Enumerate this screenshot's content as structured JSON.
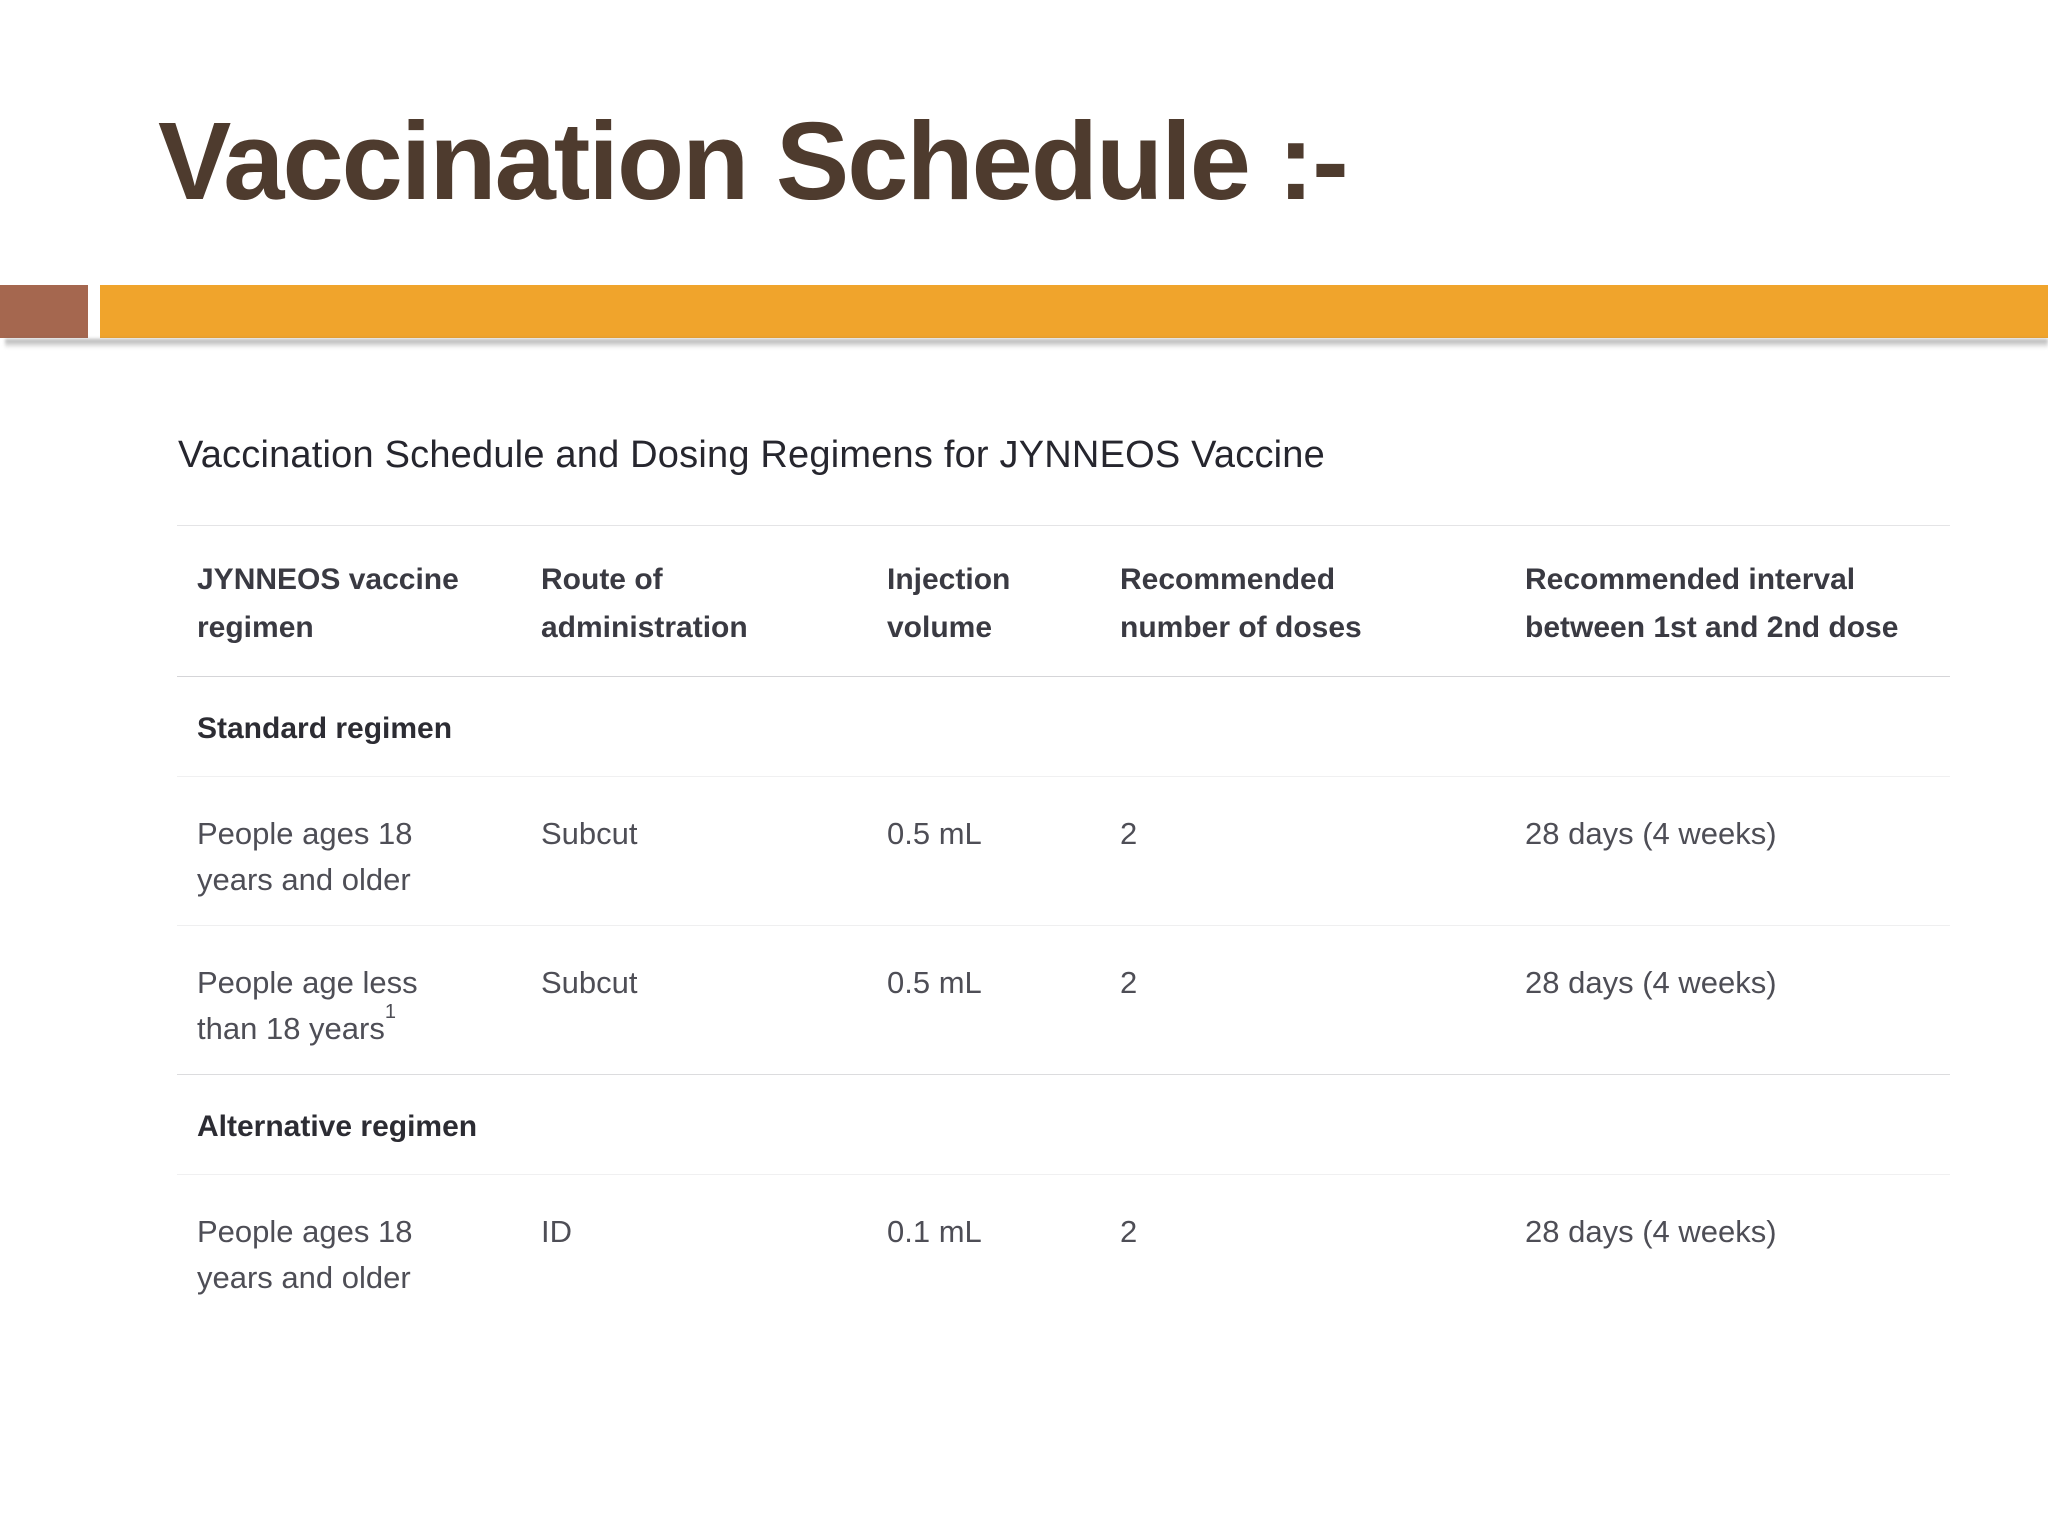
{
  "slide": {
    "title": "Vaccination Schedule :-",
    "colors": {
      "title_brown": "#4E3B2E",
      "accent_brown": "#A5674F",
      "accent_orange": "#F0A42C"
    }
  },
  "table": {
    "caption": "Vaccination Schedule and Dosing Regimens for JYNNEOS Vaccine",
    "columns": [
      {
        "line1": "JYNNEOS vaccine",
        "line2": "regimen"
      },
      {
        "line1": "Route of",
        "line2": "administration"
      },
      {
        "line1": "Injection",
        "line2": "volume"
      },
      {
        "line1": "Recommended",
        "line2": "number of doses"
      },
      {
        "line1": "Recommended interval",
        "line2": "between 1st and 2nd dose"
      }
    ],
    "rows": [
      {
        "type": "section",
        "label": "Standard regimen"
      },
      {
        "type": "data",
        "regimen_line1": "People ages 18",
        "regimen_line2": "years and older",
        "regimen_sup": "",
        "route": "Subcut",
        "volume": "0.5 mL",
        "doses": "2",
        "interval": "28 days (4 weeks)"
      },
      {
        "type": "data",
        "regimen_line1": "People age less",
        "regimen_line2": "than 18 years",
        "regimen_sup": "1",
        "route": "Subcut",
        "volume": "0.5 mL",
        "doses": "2",
        "interval": "28 days (4 weeks)"
      },
      {
        "type": "section",
        "label": "Alternative regimen"
      },
      {
        "type": "data",
        "regimen_line1": "People ages 18",
        "regimen_line2": "years and older",
        "regimen_sup": "",
        "route": "ID",
        "volume": "0.1 mL",
        "doses": "2",
        "interval": "28 days (4 weeks)"
      }
    ]
  }
}
